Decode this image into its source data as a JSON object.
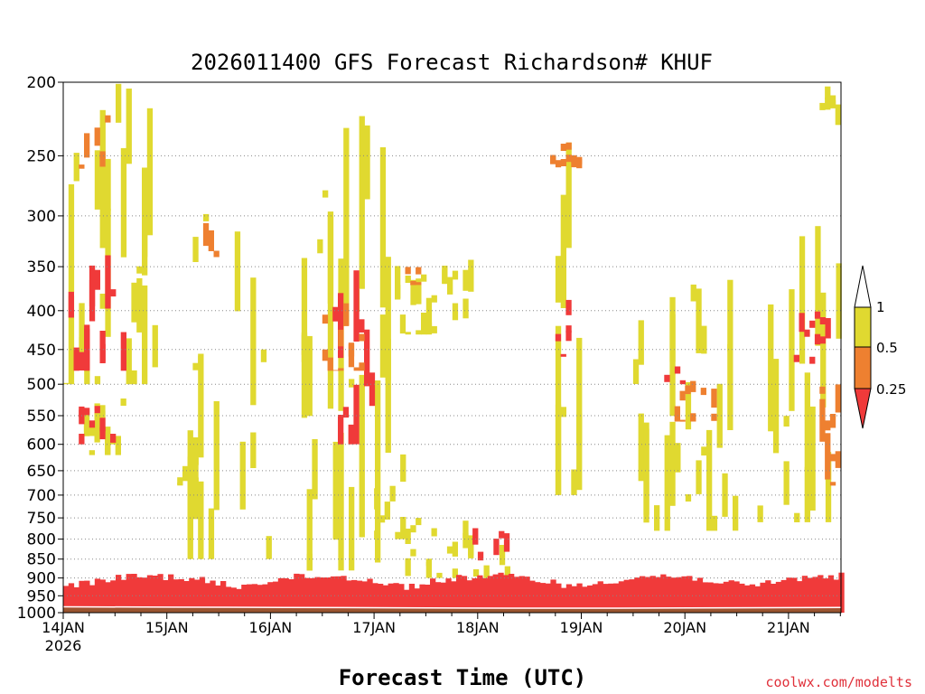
{
  "chart_data": {
    "type": "heatmap",
    "title": "2026011400 GFS Forecast Richardson# KHUF",
    "xlabel": "Forecast Time (UTC)",
    "ylabel": "",
    "credit": "coolwx.com/modelts",
    "x_range": [
      "2026-01-14T00:00",
      "2026-01-21T12:00"
    ],
    "x_ticks": [
      "14JAN",
      "15JAN",
      "16JAN",
      "17JAN",
      "18JAN",
      "19JAN",
      "20JAN",
      "21JAN"
    ],
    "x_first_year": "2026",
    "y_ticks": [
      200,
      250,
      300,
      350,
      400,
      450,
      500,
      550,
      600,
      650,
      700,
      750,
      800,
      850,
      900,
      950,
      1000
    ],
    "y_range": [
      1000,
      200
    ],
    "y_scale": "log",
    "grid": "dotted",
    "legend": {
      "placement": "right",
      "bins": [
        {
          "label": "1",
          "range": "> 1",
          "color": "#ffffff"
        },
        {
          "label": "0.5",
          "range": "0.5 - 1",
          "color": "#e0d930"
        },
        {
          "label": "0.25",
          "range": "0.25 - 0.5",
          "color": "#ee8030"
        },
        {
          "label": "",
          "range": "< 0.25",
          "color": "#f03a3a"
        }
      ]
    },
    "colors": {
      "under_1": "#e0d930",
      "under_0.5": "#ee8030",
      "under_0.25": "#f03a3a",
      "ground": "#9a5530"
    },
    "regions": [
      {
        "color": "#e0d930",
        "x": [
          0.0,
          0.9
        ],
        "y": [
          200,
          500
        ]
      },
      {
        "color": "#f03a3a",
        "x": [
          0.05,
          0.6
        ],
        "y": [
          320,
          480
        ]
      },
      {
        "color": "#ee8030",
        "x": [
          0.15,
          0.45
        ],
        "y": [
          220,
          260
        ]
      },
      {
        "color": "#e0d930",
        "x": [
          0.2,
          0.6
        ],
        "y": [
          500,
          620
        ]
      },
      {
        "color": "#f03a3a",
        "x": [
          0.15,
          0.5
        ],
        "y": [
          520,
          600
        ]
      },
      {
        "color": "#e0d930",
        "x": [
          1.1,
          1.3
        ],
        "y": [
          600,
          680
        ]
      },
      {
        "color": "#e0d930",
        "x": [
          1.2,
          2.0
        ],
        "y": [
          280,
          850
        ]
      },
      {
        "color": "#ee8030",
        "x": [
          1.3,
          1.5
        ],
        "y": [
          290,
          340
        ]
      },
      {
        "color": "#e0d930",
        "x": [
          2.3,
          3.2
        ],
        "y": [
          220,
          880
        ]
      },
      {
        "color": "#f03a3a",
        "x": [
          2.6,
          3.0
        ],
        "y": [
          350,
          600
        ]
      },
      {
        "color": "#ee8030",
        "x": [
          2.5,
          2.9
        ],
        "y": [
          380,
          480
        ]
      },
      {
        "color": "#e0d930",
        "x": [
          3.0,
          3.3
        ],
        "y": [
          600,
          800
        ]
      },
      {
        "color": "#e0d930",
        "x": [
          3.2,
          4.0
        ],
        "y": [
          340,
          430
        ]
      },
      {
        "color": "#ee8030",
        "x": [
          3.3,
          3.5
        ],
        "y": [
          350,
          370
        ]
      },
      {
        "color": "#e0d930",
        "x": [
          3.3,
          4.3
        ],
        "y": [
          750,
          900
        ]
      },
      {
        "color": "#f03a3a",
        "x": [
          3.9,
          4.3
        ],
        "y": [
          760,
          880
        ]
      },
      {
        "color": "#e0d930",
        "x": [
          4.7,
          5.0
        ],
        "y": [
          200,
          700
        ]
      },
      {
        "color": "#f03a3a",
        "x": [
          4.75,
          4.95
        ],
        "y": [
          380,
          460
        ]
      },
      {
        "color": "#ee8030",
        "x": [
          4.7,
          5.0
        ],
        "y": [
          240,
          260
        ]
      },
      {
        "color": "#e0d930",
        "x": [
          5.5,
          6.5
        ],
        "y": [
          350,
          780
        ]
      },
      {
        "color": "#ee8030",
        "x": [
          5.9,
          6.3
        ],
        "y": [
          490,
          560
        ]
      },
      {
        "color": "#f03a3a",
        "x": [
          5.8,
          6.0
        ],
        "y": [
          470,
          500
        ]
      },
      {
        "color": "#e0d930",
        "x": [
          6.7,
          7.5
        ],
        "y": [
          300,
          760
        ]
      },
      {
        "color": "#f03a3a",
        "x": [
          7.0,
          7.4
        ],
        "y": [
          400,
          470
        ]
      },
      {
        "color": "#ee8030",
        "x": [
          7.3,
          7.5
        ],
        "y": [
          480,
          680
        ]
      },
      {
        "color": "#e0d930",
        "x": [
          7.3,
          7.5
        ],
        "y": [
          200,
          230
        ]
      },
      {
        "color": "#f03a3a",
        "x": [
          0.0,
          7.5
        ],
        "y": [
          900,
          1000
        ]
      }
    ],
    "ground_top_hpa": [
      985,
      986,
      987,
      988,
      989,
      989,
      988,
      987
    ]
  }
}
